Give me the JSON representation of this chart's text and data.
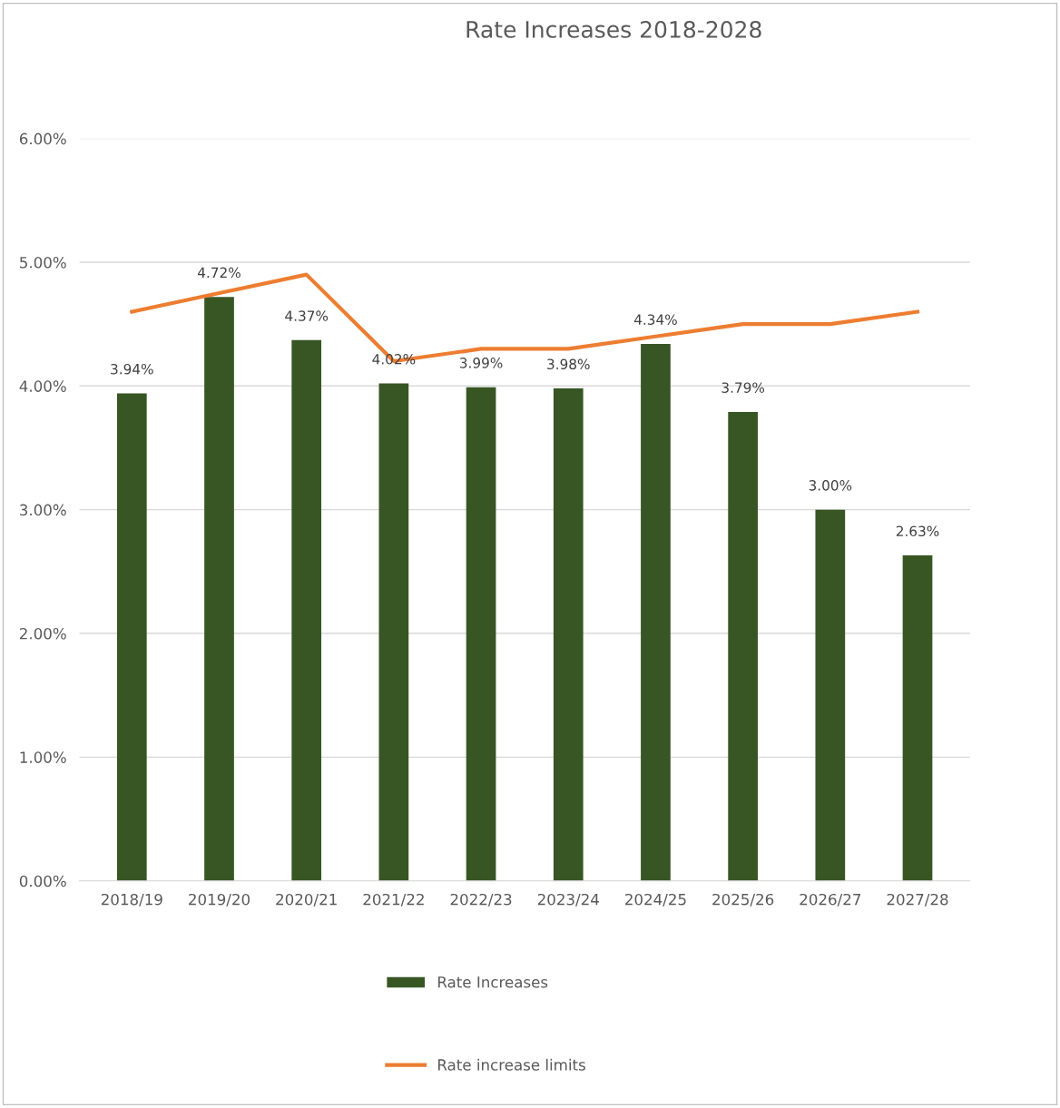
{
  "chart_data": {
    "type": "bar",
    "title": "Rate Increases 2018-2028",
    "categories": [
      "2018/19",
      "2019/20",
      "2020/21",
      "2021/22",
      "2022/23",
      "2023/24",
      "2024/25",
      "2025/26",
      "2026/27",
      "2027/28"
    ],
    "series": [
      {
        "name": "Rate Increases",
        "type": "bar",
        "color": "#375623",
        "values": [
          3.94,
          4.72,
          4.37,
          4.02,
          3.99,
          3.98,
          4.34,
          3.79,
          3.0,
          2.63
        ],
        "value_labels": [
          "3.94%",
          "4.72%",
          "4.37%",
          "4.02%",
          "3.99%",
          "3.98%",
          "4.34%",
          "3.79%",
          "3.00%",
          "2.63%"
        ]
      },
      {
        "name": "Rate increase limits",
        "type": "line",
        "color": "#ed7d31",
        "values": [
          4.6,
          4.75,
          4.9,
          4.2,
          4.3,
          4.3,
          4.4,
          4.5,
          4.5,
          4.6
        ]
      }
    ],
    "ylim": [
      0,
      6
    ],
    "yticks": [
      {
        "value": 0,
        "label": "0.00%"
      },
      {
        "value": 1,
        "label": "1.00%"
      },
      {
        "value": 2,
        "label": "2.00%"
      },
      {
        "value": 3,
        "label": "3.00%"
      },
      {
        "value": 4,
        "label": "4.00%"
      },
      {
        "value": 5,
        "label": "5.00%"
      },
      {
        "value": 6,
        "label": "6.00%"
      }
    ],
    "grid": "y",
    "legend": "bottom",
    "marker": "none",
    "line_style": "solid"
  }
}
